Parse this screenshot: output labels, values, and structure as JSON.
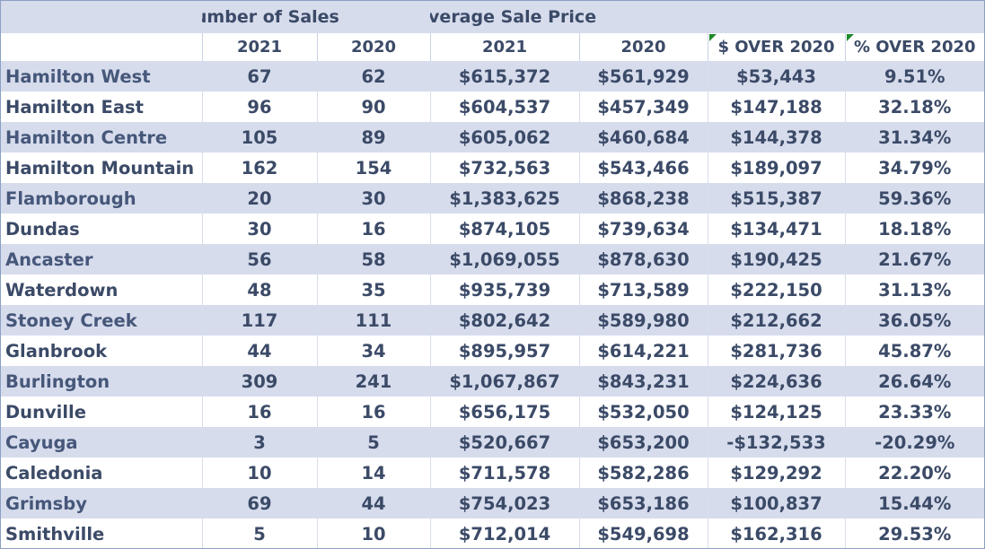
{
  "header": {
    "sales_group": "Number of Sales",
    "price_group": "Average Sale Price"
  },
  "columns": {
    "area": "",
    "sales_2021": "2021",
    "sales_2020": "2020",
    "price_2021": "2021",
    "price_2020": "2020",
    "dollar_over": "$ OVER 2020",
    "pct_over": "% OVER 2020"
  },
  "rows": [
    {
      "area": "Hamilton West",
      "sales_2021": "67",
      "sales_2020": "62",
      "price_2021": "$615,372",
      "price_2020": "$561,929",
      "dollar_over": "$53,443",
      "pct_over": "9.51%"
    },
    {
      "area": "Hamilton East",
      "sales_2021": "96",
      "sales_2020": "90",
      "price_2021": "$604,537",
      "price_2020": "$457,349",
      "dollar_over": "$147,188",
      "pct_over": "32.18%"
    },
    {
      "area": "Hamilton Centre",
      "sales_2021": "105",
      "sales_2020": "89",
      "price_2021": "$605,062",
      "price_2020": "$460,684",
      "dollar_over": "$144,378",
      "pct_over": "31.34%"
    },
    {
      "area": "Hamilton Mountain",
      "sales_2021": "162",
      "sales_2020": "154",
      "price_2021": "$732,563",
      "price_2020": "$543,466",
      "dollar_over": "$189,097",
      "pct_over": "34.79%"
    },
    {
      "area": "Flamborough",
      "sales_2021": "20",
      "sales_2020": "30",
      "price_2021": "$1,383,625",
      "price_2020": "$868,238",
      "dollar_over": "$515,387",
      "pct_over": "59.36%"
    },
    {
      "area": "Dundas",
      "sales_2021": "30",
      "sales_2020": "16",
      "price_2021": "$874,105",
      "price_2020": "$739,634",
      "dollar_over": "$134,471",
      "pct_over": "18.18%"
    },
    {
      "area": "Ancaster",
      "sales_2021": "56",
      "sales_2020": "58",
      "price_2021": "$1,069,055",
      "price_2020": "$878,630",
      "dollar_over": "$190,425",
      "pct_over": "21.67%"
    },
    {
      "area": "Waterdown",
      "sales_2021": "48",
      "sales_2020": "35",
      "price_2021": "$935,739",
      "price_2020": "$713,589",
      "dollar_over": "$222,150",
      "pct_over": "31.13%"
    },
    {
      "area": "Stoney Creek",
      "sales_2021": "117",
      "sales_2020": "111",
      "price_2021": "$802,642",
      "price_2020": "$589,980",
      "dollar_over": "$212,662",
      "pct_over": "36.05%"
    },
    {
      "area": "Glanbrook",
      "sales_2021": "44",
      "sales_2020": "34",
      "price_2021": "$895,957",
      "price_2020": "$614,221",
      "dollar_over": "$281,736",
      "pct_over": "45.87%"
    },
    {
      "area": "Burlington",
      "sales_2021": "309",
      "sales_2020": "241",
      "price_2021": "$1,067,867",
      "price_2020": "$843,231",
      "dollar_over": "$224,636",
      "pct_over": "26.64%"
    },
    {
      "area": "Dunville",
      "sales_2021": "16",
      "sales_2020": "16",
      "price_2021": "$656,175",
      "price_2020": "$532,050",
      "dollar_over": "$124,125",
      "pct_over": "23.33%"
    },
    {
      "area": "Cayuga",
      "sales_2021": "3",
      "sales_2020": "5",
      "price_2021": "$520,667",
      "price_2020": "$653,200",
      "dollar_over": "-$132,533",
      "pct_over": "-20.29%"
    },
    {
      "area": "Caledonia",
      "sales_2021": "10",
      "sales_2020": "14",
      "price_2021": "$711,578",
      "price_2020": "$582,286",
      "dollar_over": "$129,292",
      "pct_over": "22.20%"
    },
    {
      "area": "Grimsby",
      "sales_2021": "69",
      "sales_2020": "44",
      "price_2021": "$754,023",
      "price_2020": "$653,186",
      "dollar_over": "$100,837",
      "pct_over": "15.44%"
    },
    {
      "area": "Smithville",
      "sales_2021": "5",
      "sales_2020": "10",
      "price_2021": "$712,014",
      "price_2020": "$549,698",
      "dollar_over": "$162,316",
      "pct_over": "29.53%"
    }
  ],
  "colors": {
    "band": "#d6dcec",
    "text": "#3b4a67",
    "comment_flag": "#1f8a2a"
  }
}
